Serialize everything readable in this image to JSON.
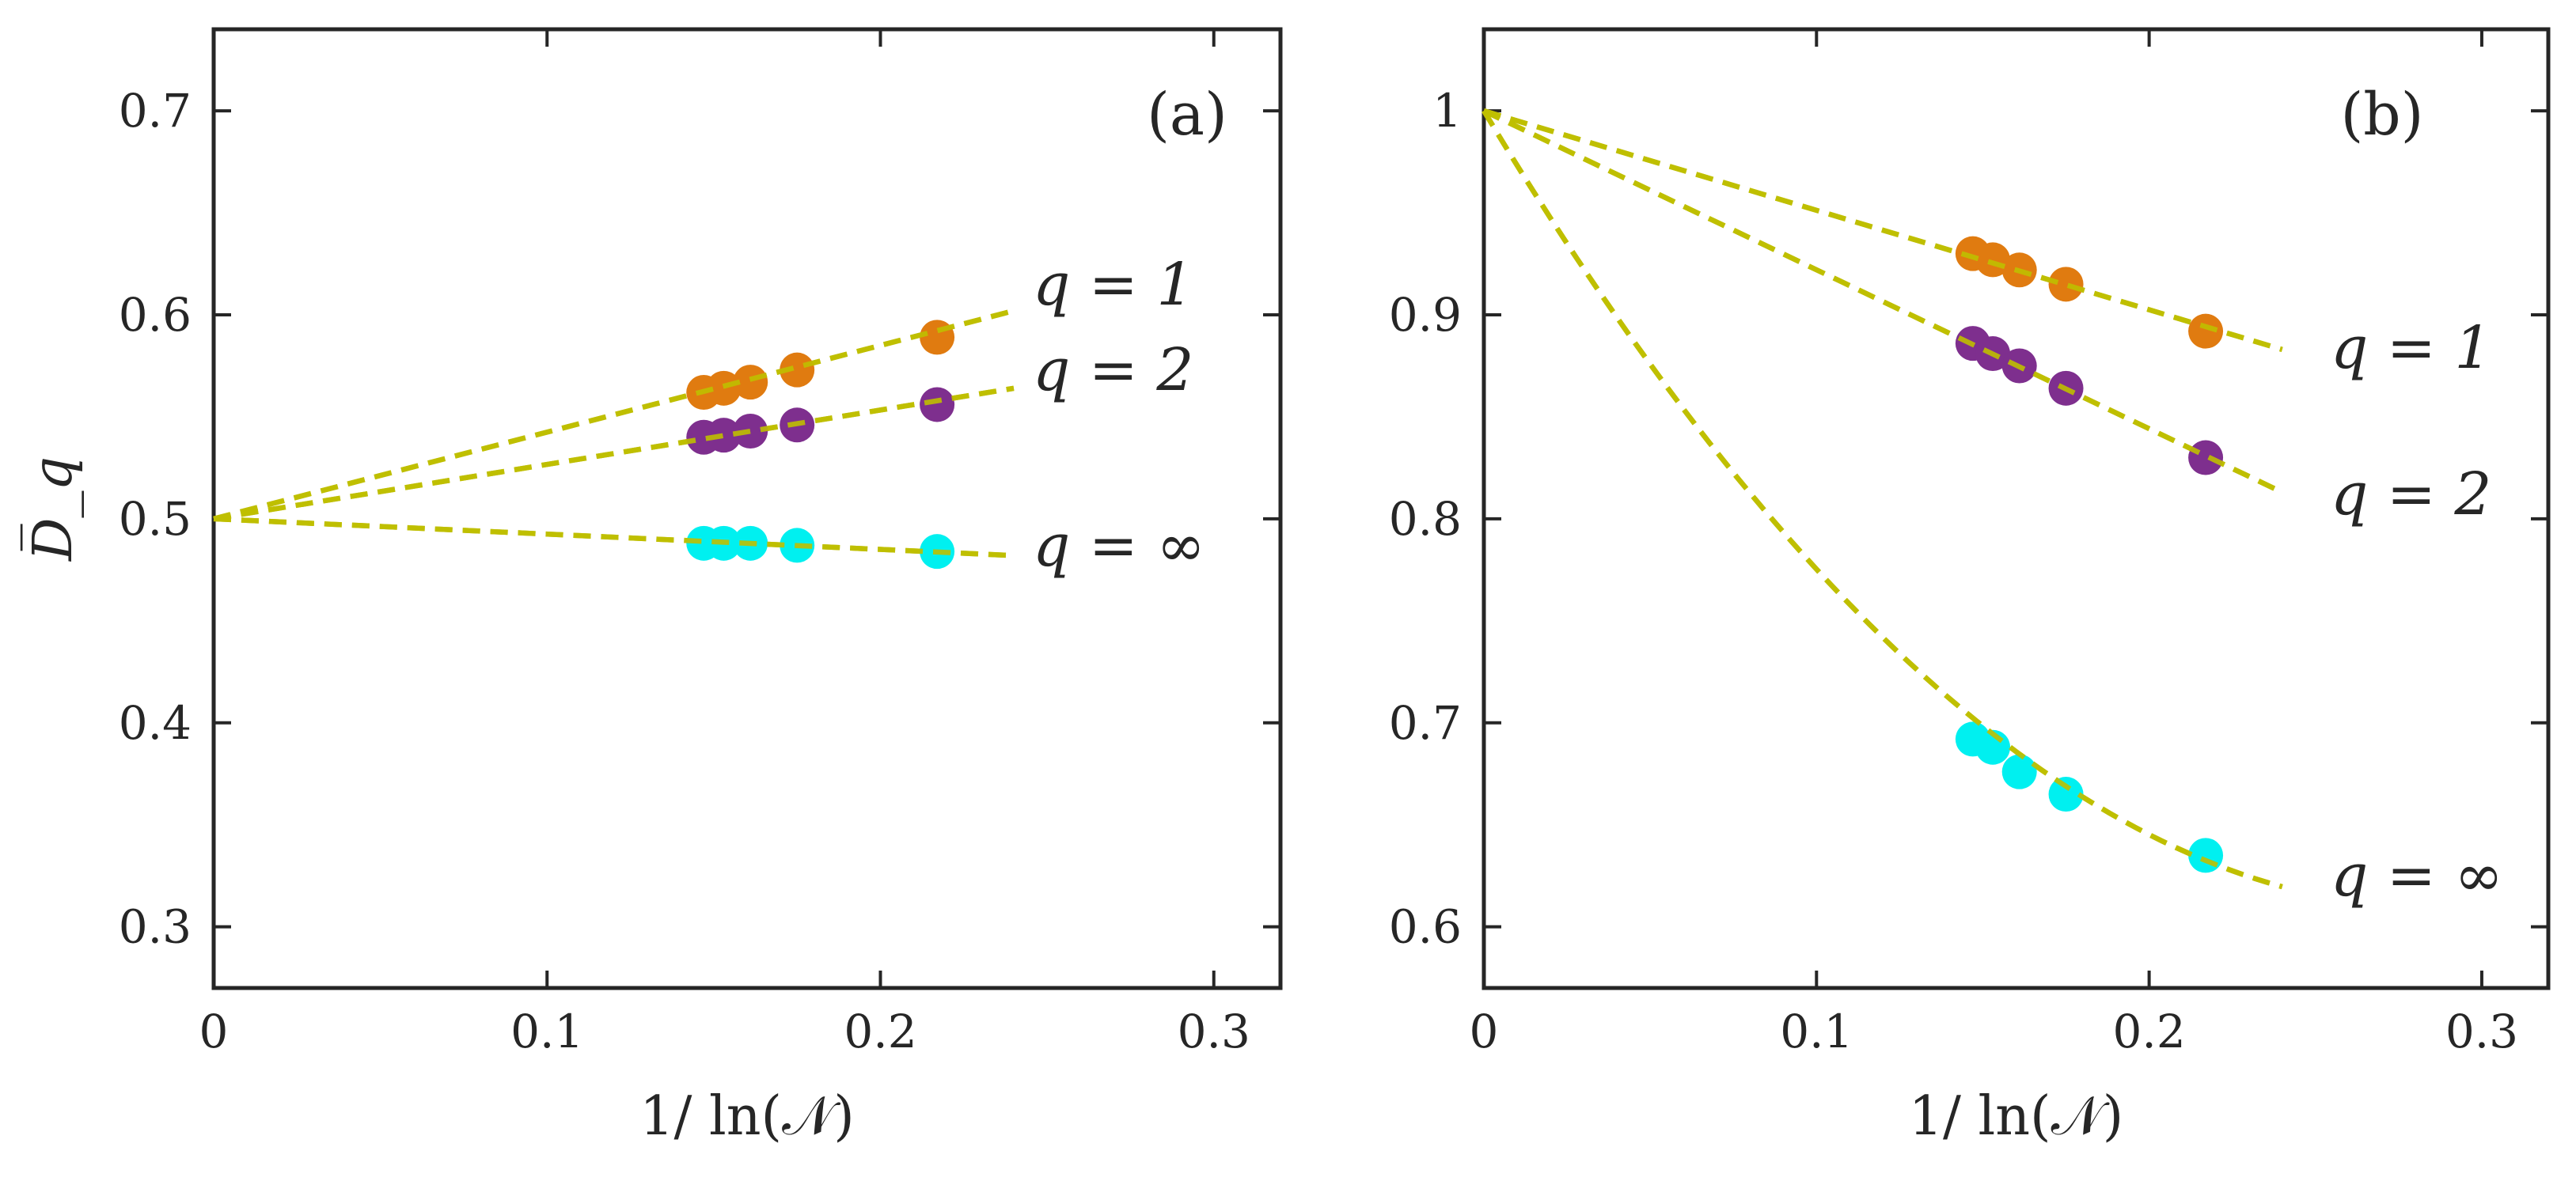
{
  "chart_data": [
    {
      "type": "scatter",
      "panel": "(a)",
      "xlabel": "1/ ln(𝒩)",
      "ylabel": "D̅_q",
      "xlim": [
        0,
        0.32
      ],
      "ylim": [
        0.27,
        0.74
      ],
      "xticks": [
        0,
        0.1,
        0.2,
        0.3
      ],
      "xtick_labels": [
        "0",
        "0.1",
        "0.2",
        "0.3"
      ],
      "yticks": [
        0.3,
        0.4,
        0.5,
        0.6,
        0.7
      ],
      "ytick_labels": [
        "0.3",
        "0.4",
        "0.5",
        "0.6",
        "0.7"
      ],
      "x": [
        0.147,
        0.153,
        0.161,
        0.175,
        0.217
      ],
      "series": [
        {
          "name": "q = 1",
          "color": "#E07B10",
          "values": [
            0.562,
            0.564,
            0.567,
            0.573,
            0.589
          ],
          "fit": {
            "x": [
              0,
              0.24
            ],
            "y": [
              0.5,
              0.602
            ],
            "curve": "line"
          }
        },
        {
          "name": "q = 2",
          "color": "#7E2F8E",
          "values": [
            0.54,
            0.541,
            0.543,
            0.546,
            0.556
          ],
          "fit": {
            "x": [
              0,
              0.24
            ],
            "y": [
              0.5,
              0.564
            ],
            "curve": "line"
          }
        },
        {
          "name": "q = ∞",
          "color": "#00F0F0",
          "values": [
            0.488,
            0.488,
            0.488,
            0.487,
            0.484
          ],
          "fit": {
            "x": [
              0,
              0.24
            ],
            "y": [
              0.5,
              0.482
            ],
            "curve": "line"
          }
        }
      ],
      "fit_color": "#BFBF00"
    },
    {
      "type": "scatter",
      "panel": "(b)",
      "xlabel": "1/ ln(𝒩)",
      "ylabel": "",
      "xlim": [
        0,
        0.32
      ],
      "ylim": [
        0.57,
        1.04
      ],
      "xticks": [
        0,
        0.1,
        0.2,
        0.3
      ],
      "xtick_labels": [
        "0",
        "0.1",
        "0.2",
        "0.3"
      ],
      "yticks": [
        0.6,
        0.7,
        0.8,
        0.9,
        1.0
      ],
      "ytick_labels": [
        "0.6",
        "0.7",
        "0.8",
        "0.9",
        "1"
      ],
      "x": [
        0.147,
        0.153,
        0.161,
        0.175,
        0.217
      ],
      "series": [
        {
          "name": "q = 1",
          "color": "#E07B10",
          "values": [
            0.93,
            0.927,
            0.922,
            0.915,
            0.892
          ],
          "fit": {
            "x": [
              0,
              0.24
            ],
            "y": [
              1.0,
              0.883
            ],
            "curve": "line"
          }
        },
        {
          "name": "q = 2",
          "color": "#7E2F8E",
          "values": [
            0.886,
            0.881,
            0.875,
            0.864,
            0.83
          ],
          "fit": {
            "x": [
              0,
              0.24
            ],
            "y": [
              1.0,
              0.813
            ],
            "curve": "line"
          }
        },
        {
          "name": "q = ∞",
          "color": "#00F0F0",
          "values": [
            0.692,
            0.688,
            0.676,
            0.665,
            0.635
          ],
          "fit": {
            "x": [
              0,
              0.24
            ],
            "y": [
              1.0,
              0.62
            ],
            "curve": "quadratic",
            "b": -2.72,
            "c": 4.73
          }
        }
      ],
      "fit_color": "#BFBF00"
    }
  ]
}
